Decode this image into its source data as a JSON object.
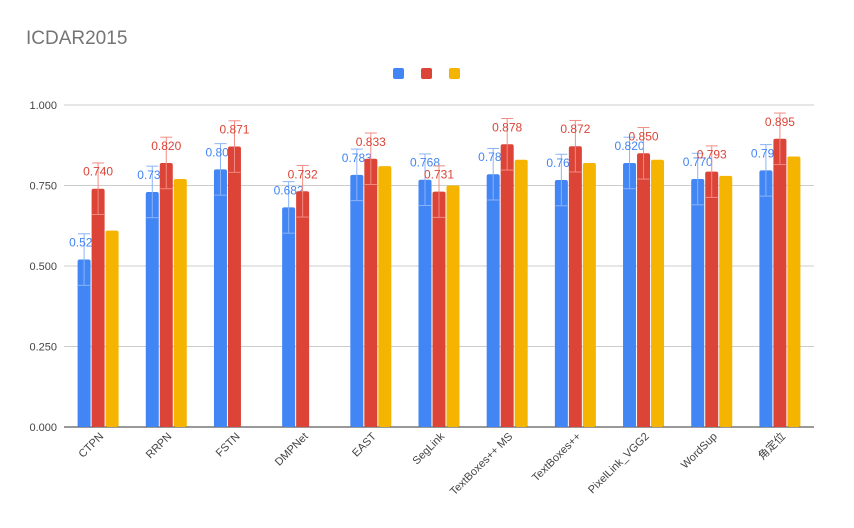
{
  "chart_data": {
    "type": "bar",
    "title": "ICDAR2015",
    "xlabel": "",
    "ylabel": "",
    "ylim": [
      0,
      1.0
    ],
    "yticks": [
      "0.000",
      "0.250",
      "0.500",
      "0.750",
      "1.000"
    ],
    "ytick_values": [
      0,
      0.25,
      0.5,
      0.75,
      1.0
    ],
    "grid": true,
    "legend_position": "top",
    "categories": [
      "CTPN",
      "RRPN",
      "FSTN",
      "DMPNet",
      "EAST",
      "SegLink",
      "TextBoxes++ MS",
      "TextBoxes++",
      "PixelLink_VGG2",
      "WordSup",
      "角定位"
    ],
    "series": [
      {
        "color": "#4285f4",
        "values": [
          0.52,
          0.73,
          0.8,
          0.682,
          0.783,
          0.768,
          0.785,
          0.767,
          0.82,
          0.77,
          0.797
        ],
        "labels": [
          "0.520",
          "0.730",
          "0.800",
          "0.682",
          "0.783",
          "0.768",
          "0.785",
          "0.767",
          "0.820",
          "0.770",
          "0.797"
        ],
        "error": 0.08
      },
      {
        "color": "#db4437",
        "values": [
          0.74,
          0.82,
          0.871,
          0.732,
          0.833,
          0.731,
          0.878,
          0.872,
          0.85,
          0.793,
          0.895
        ],
        "labels": [
          "0.740",
          "0.820",
          "0.871",
          "0.732",
          "0.833",
          "0.731",
          "0.878",
          "0.872",
          "0.850",
          "0.793",
          "0.895"
        ],
        "error": 0.08
      },
      {
        "color": "#f4b400",
        "values": [
          0.61,
          0.77,
          null,
          null,
          0.81,
          0.75,
          0.83,
          0.82,
          0.83,
          0.78,
          0.84
        ]
      }
    ]
  }
}
